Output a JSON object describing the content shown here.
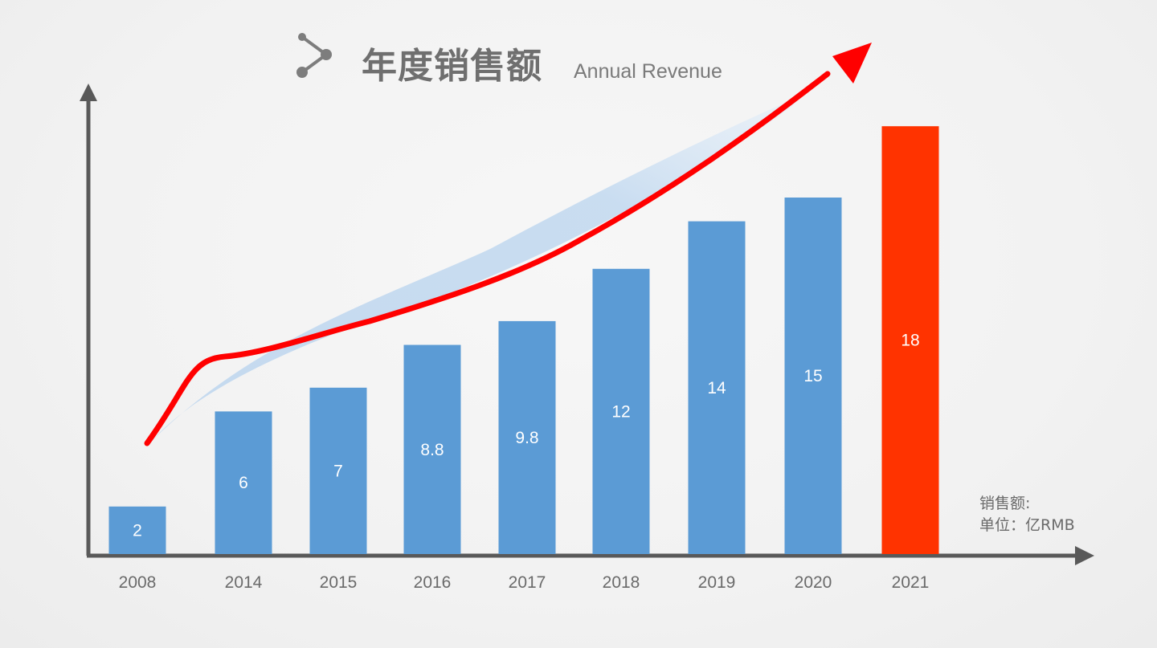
{
  "header": {
    "title_cn": "年度销售额",
    "title_en": "Annual Revenue",
    "icon": "share-nodes-icon"
  },
  "unit_note": {
    "line1": "销售额:",
    "line2": "单位：亿RMB"
  },
  "colors": {
    "bar": "#5b9bd5",
    "highlight_bar": "#ff3300",
    "trend_arrow": "#ff0000",
    "trend_band": "#bcd5ee",
    "axis": "#595959"
  },
  "chart_data": {
    "type": "bar",
    "categories": [
      "2008",
      "2014",
      "2015",
      "2016",
      "2017",
      "2018",
      "2019",
      "2020",
      "2021"
    ],
    "values": [
      2,
      6,
      7,
      8.8,
      9.8,
      12,
      14,
      15,
      18
    ],
    "value_labels": [
      "2",
      "6",
      "7",
      "8.8",
      "9.8",
      "12",
      "14",
      "15",
      "18"
    ],
    "highlight_category": "2021",
    "title": "年度销售额",
    "subtitle": "Annual Revenue",
    "xlabel": "",
    "ylabel": "",
    "grid": false,
    "trend_arrow": true
  }
}
